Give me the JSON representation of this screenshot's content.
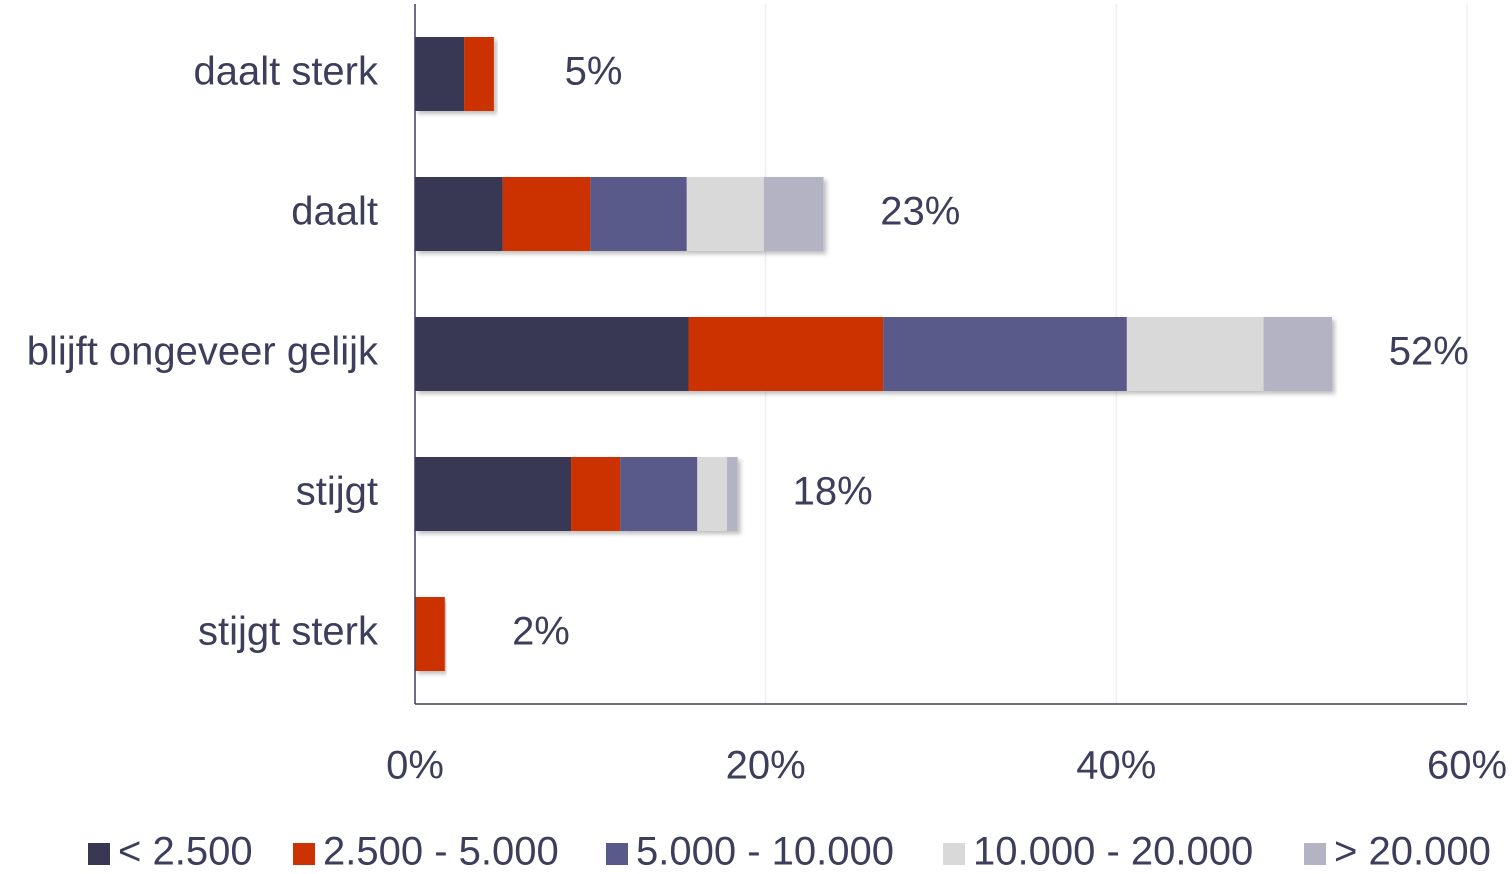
{
  "chart_data": {
    "type": "stacked_bar_horizontal",
    "categories": [
      "daalt sterk",
      "daalt",
      "blijft ongeveer gelijk",
      "stijgt",
      "stijgt sterk"
    ],
    "series": [
      {
        "name": "< 2.500",
        "color": "#383854",
        "values": [
          2.8,
          5.0,
          15.6,
          8.9,
          0
        ]
      },
      {
        "name": "2.500 - 5.000",
        "color": "#cc3300",
        "values": [
          1.7,
          5.0,
          11.1,
          2.8,
          1.7
        ]
      },
      {
        "name": "5.000 - 10.000",
        "color": "#5a5a8a",
        "values": [
          0,
          5.5,
          13.9,
          4.4,
          0
        ]
      },
      {
        "name": "10.000 - 20.000",
        "color": "#d9d9d9",
        "values": [
          0,
          4.4,
          7.8,
          1.7,
          0
        ]
      },
      {
        "name": "> 20.000",
        "color": "#b3b3c3",
        "values": [
          0,
          3.4,
          3.9,
          0.6,
          0
        ]
      }
    ],
    "totals": [
      5,
      23,
      52,
      18,
      2
    ],
    "total_labels": [
      "5%",
      "23%",
      "52%",
      "18%",
      "2%"
    ],
    "xlim": [
      0,
      60
    ],
    "xticks": [
      {
        "value": 0,
        "label": "0%"
      },
      {
        "value": 20,
        "label": "20%"
      },
      {
        "value": 40,
        "label": "40%"
      },
      {
        "value": 60,
        "label": "60%"
      }
    ],
    "grid": true,
    "legend": "bottom"
  }
}
